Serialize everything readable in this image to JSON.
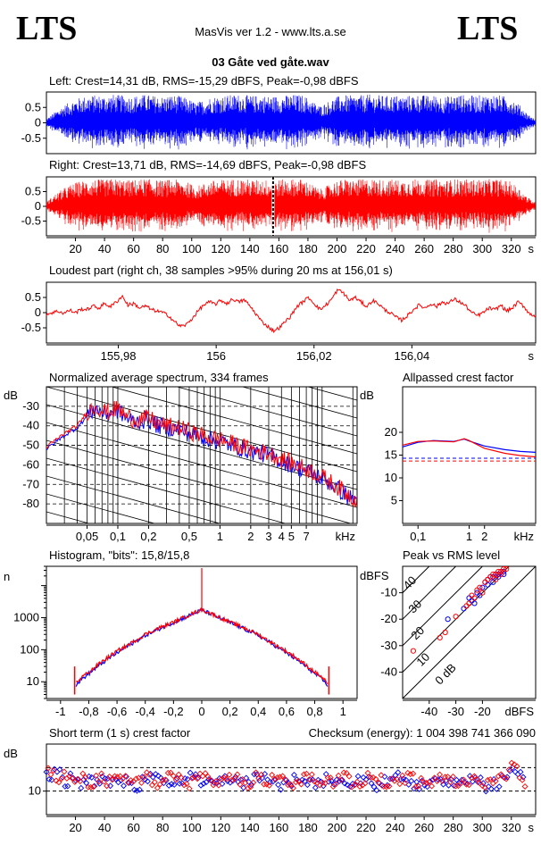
{
  "header": {
    "logo_left": "LTS",
    "logo_right": "LTS",
    "app_title": "MasVis ver 1.2 - www.lts.a.se",
    "file_title": "03 Gåte ved gåte.wav"
  },
  "colors": {
    "left": "#0000ff",
    "right": "#ff0000",
    "grid": "#000000"
  },
  "chart_data": [
    {
      "id": "left-waveform",
      "type": "area",
      "title": "Left: Crest=14,31 dB, RMS=-15,29 dBFS, Peak=-0,98 dBFS",
      "ylim": [
        -1,
        1
      ],
      "yticks": [
        "0.5",
        "0",
        "-0.5"
      ],
      "color": "#0000ff",
      "envelope": [
        0.12,
        0.35,
        0.55,
        0.7,
        0.82,
        0.88,
        0.9,
        0.88,
        0.92,
        0.9,
        0.86,
        0.9,
        0.92,
        0.88,
        0.85,
        0.9,
        0.88,
        0.8,
        0.65,
        0.75,
        0.85,
        0.88,
        0.9,
        0.92,
        0.9,
        0.88,
        0.9,
        0.86,
        0.88,
        0.9,
        0.92,
        0.9,
        0.72,
        0.55,
        0.7,
        0.85,
        0.9,
        0.88,
        0.9,
        0.92,
        0.9,
        0.88,
        0.9,
        0.86,
        0.9,
        0.92,
        0.88,
        0.9,
        0.85,
        0.9,
        0.92,
        0.88,
        0.9,
        0.9,
        0.92,
        0.88,
        0.82,
        0.6,
        0.3,
        0.1
      ]
    },
    {
      "id": "right-waveform",
      "type": "area",
      "title": "Right: Crest=13,71 dB, RMS=-14,69 dBFS, Peak=-0,98 dBFS",
      "ylim": [
        -1,
        1
      ],
      "yticks": [
        "0.5",
        "0",
        "-0.5"
      ],
      "color": "#ff0000",
      "marker_time_s": 156.01,
      "xaxis": {
        "max_s": 330,
        "ticks": [
          "20",
          "40",
          "60",
          "80",
          "100",
          "120",
          "140",
          "160",
          "180",
          "200",
          "220",
          "240",
          "260",
          "280",
          "300",
          "320"
        ],
        "unit": "s"
      },
      "envelope": [
        0.15,
        0.4,
        0.6,
        0.75,
        0.85,
        0.9,
        0.92,
        0.9,
        0.94,
        0.92,
        0.88,
        0.92,
        0.94,
        0.9,
        0.88,
        0.92,
        0.9,
        0.82,
        0.68,
        0.78,
        0.88,
        0.9,
        0.92,
        0.94,
        0.92,
        0.9,
        0.92,
        0.88,
        0.9,
        0.92,
        0.94,
        0.92,
        0.75,
        0.58,
        0.72,
        0.88,
        0.92,
        0.9,
        0.92,
        0.94,
        0.92,
        0.9,
        0.92,
        0.88,
        0.92,
        0.94,
        0.9,
        0.92,
        0.88,
        0.92,
        0.94,
        0.9,
        0.92,
        0.92,
        0.94,
        0.9,
        0.84,
        0.62,
        0.32,
        0.12
      ]
    },
    {
      "id": "loudest-part",
      "type": "line",
      "title": "Loudest part (right ch, 38 samples >95% during 20 ms at 156,01 s)",
      "ylim": [
        -1,
        1
      ],
      "yticks": [
        "0.5",
        "0",
        "-0.5"
      ],
      "color": "#ff0000",
      "xlim": [
        155.9653,
        156.0653
      ],
      "xticks": [
        {
          "v": 155.98,
          "label": "155,98"
        },
        {
          "v": 156.0,
          "label": "156"
        },
        {
          "v": 156.02,
          "label": "156,02"
        },
        {
          "v": 156.04,
          "label": "156,04"
        }
      ],
      "xunit": "s",
      "values": [
        -0.05,
        0.0,
        0.05,
        -0.02,
        0.08,
        0.0,
        0.12,
        0.1,
        0.22,
        0.15,
        0.3,
        0.2,
        0.35,
        0.55,
        0.25,
        0.3,
        0.15,
        0.22,
        0.1,
        0.05,
        0.0,
        -0.1,
        -0.3,
        -0.45,
        -0.4,
        -0.2,
        0.05,
        0.25,
        0.35,
        0.28,
        0.4,
        0.3,
        0.45,
        0.35,
        0.42,
        0.2,
        -0.05,
        -0.3,
        -0.45,
        -0.6,
        -0.5,
        -0.3,
        -0.1,
        0.2,
        0.35,
        0.5,
        0.3,
        0.1,
        0.25,
        0.45,
        0.75,
        0.65,
        0.4,
        0.5,
        0.35,
        0.2,
        0.4,
        0.3,
        0.1,
        0.0,
        -0.15,
        -0.25,
        -0.1,
        0.1,
        0.25,
        0.15,
        0.3,
        0.2,
        0.35,
        0.3,
        0.45,
        0.35,
        0.22,
        0.0,
        -0.1,
        0.0,
        0.15,
        0.08,
        0.25,
        0.05,
        0.15,
        0.35,
        0.2,
        -0.05,
        -0.1
      ]
    },
    {
      "id": "avg-spectrum",
      "type": "line",
      "title": "Normalized average spectrum, 334 frames",
      "ylabel": "dB",
      "ylim": [
        -90,
        -20
      ],
      "yticks": [
        "-30",
        "-40",
        "-50",
        "-60",
        "-70",
        "-80"
      ],
      "xscale": "log",
      "xlim_khz": [
        0.02,
        22
      ],
      "xunit": "kHz",
      "xticks": [
        {
          "v": 0.05,
          "label": "0,05"
        },
        {
          "v": 0.1,
          "label": "0,1"
        },
        {
          "v": 0.2,
          "label": "0,2"
        },
        {
          "v": 0.5,
          "label": "0,5"
        },
        {
          "v": 1,
          "label": "1"
        },
        {
          "v": 2,
          "label": "2"
        },
        {
          "v": 3,
          "label": "3"
        },
        {
          "v": 4,
          "label": "4"
        },
        {
          "v": 5,
          "label": "5"
        },
        {
          "v": 7,
          "label": "7"
        }
      ],
      "x_khz": [
        0.02,
        0.025,
        0.03,
        0.04,
        0.05,
        0.06,
        0.07,
        0.08,
        0.1,
        0.12,
        0.15,
        0.2,
        0.25,
        0.3,
        0.4,
        0.5,
        0.6,
        0.8,
        1.0,
        1.5,
        2.0,
        3.0,
        4.0,
        5.0,
        7.0,
        10.0,
        14.0,
        20.0
      ],
      "series": [
        {
          "color": "#0000ff",
          "values": [
            -52,
            -48,
            -45,
            -41,
            -35,
            -31,
            -33,
            -34,
            -32,
            -36,
            -38,
            -37,
            -40,
            -41,
            -42,
            -44,
            -45,
            -47,
            -48,
            -51,
            -53,
            -55,
            -58,
            -60,
            -63,
            -67,
            -72,
            -78
          ]
        },
        {
          "color": "#ff0000",
          "values": [
            -51,
            -47,
            -44,
            -40,
            -33,
            -30,
            -32,
            -33,
            -31,
            -35,
            -37,
            -36,
            -39,
            -40,
            -41,
            -43,
            -44,
            -46,
            -47,
            -50,
            -52,
            -54,
            -57,
            -59,
            -62,
            -66,
            -71,
            -77
          ]
        }
      ]
    },
    {
      "id": "allpassed-crest",
      "type": "line",
      "title": "Allpassed crest factor",
      "ylabel": "dB",
      "ylim": [
        0,
        30
      ],
      "yticks": [
        "20",
        "15",
        "10",
        "5"
      ],
      "xscale": "log",
      "xlim_khz": [
        0.05,
        20
      ],
      "xunit": "kHz",
      "xticks": [
        {
          "v": 0.1,
          "label": "0,1"
        },
        {
          "v": 1,
          "label": "1"
        },
        {
          "v": 2,
          "label": "2"
        }
      ],
      "x_khz": [
        0.05,
        0.1,
        0.2,
        0.5,
        0.8,
        1.0,
        2.0,
        5.0,
        10.0,
        20.0
      ],
      "series": [
        {
          "color": "#0000ff",
          "values": [
            16.8,
            17.8,
            18.2,
            18.0,
            18.5,
            18.1,
            17.0,
            16.2,
            15.8,
            15.6
          ],
          "reference": 14.31
        },
        {
          "color": "#ff0000",
          "values": [
            17.2,
            18.0,
            18.1,
            17.9,
            18.6,
            18.2,
            16.5,
            15.4,
            14.9,
            14.6
          ],
          "reference": 13.71
        }
      ]
    },
    {
      "id": "histogram",
      "type": "line",
      "title": "Histogram, \"bits\": 15,8/15,8",
      "ylabel": "n",
      "yscale": "log",
      "ylim": [
        3,
        40000
      ],
      "yticks": [
        {
          "v": 1000,
          "label": "1000"
        },
        {
          "v": 100,
          "label": "100"
        },
        {
          "v": 10,
          "label": "10"
        }
      ],
      "xlim": [
        -1.1,
        1.1
      ],
      "xticks": [
        "-1",
        "-0,8",
        "-0,6",
        "-0,4",
        "-0,2",
        "0",
        "0,2",
        "0,4",
        "0,6",
        "0,8",
        "1"
      ],
      "x": [
        -0.89,
        -0.85,
        -0.8,
        -0.7,
        -0.6,
        -0.5,
        -0.4,
        -0.3,
        -0.2,
        -0.1,
        -0.05,
        0.0,
        0.05,
        0.1,
        0.2,
        0.3,
        0.4,
        0.5,
        0.6,
        0.7,
        0.8,
        0.85,
        0.89
      ],
      "series": [
        {
          "color": "#0000ff",
          "values": [
            8,
            12,
            18,
            40,
            80,
            150,
            280,
            450,
            700,
            1100,
            1400,
            1700,
            1400,
            1100,
            700,
            450,
            280,
            150,
            80,
            40,
            18,
            12,
            8
          ]
        },
        {
          "color": "#ff0000",
          "values": [
            9,
            14,
            20,
            45,
            90,
            160,
            300,
            480,
            720,
            1150,
            1450,
            1750,
            1450,
            1150,
            720,
            480,
            300,
            160,
            90,
            45,
            20,
            14,
            9
          ]
        }
      ]
    },
    {
      "id": "peak-vs-rms",
      "type": "scatter",
      "title": "Peak vs RMS level",
      "xlabel": "dBFS",
      "ylabel": "dBFS",
      "xlim": [
        -50,
        0
      ],
      "ylim": [
        -50,
        0
      ],
      "xticks": [
        "-40",
        "-30",
        "-20"
      ],
      "yticks": [
        "-10",
        "-20",
        "-30",
        "-40"
      ],
      "diag_labels": [
        "40",
        "30",
        "20",
        "10",
        "0 dB"
      ],
      "series": [
        {
          "color": "#0000ff",
          "points": [
            [
              -33,
              -20
            ],
            [
              -27,
              -16
            ],
            [
              -25,
              -12
            ],
            [
              -22,
              -10
            ],
            [
              -20,
              -8
            ],
            [
              -19,
              -6
            ],
            [
              -18,
              -5
            ],
            [
              -17,
              -4
            ],
            [
              -16,
              -4
            ],
            [
              -15,
              -3
            ],
            [
              -14,
              -3
            ],
            [
              -13,
              -2
            ],
            [
              -12,
              -2
            ],
            [
              -21,
              -11
            ],
            [
              -23,
              -14
            ],
            [
              -24,
              -13
            ],
            [
              -18,
              -7
            ],
            [
              -16,
              -6
            ],
            [
              -14,
              -4
            ],
            [
              -12,
              -3
            ]
          ]
        },
        {
          "color": "#ff0000",
          "points": [
            [
              -46,
              -32
            ],
            [
              -36,
              -27
            ],
            [
              -34,
              -25
            ],
            [
              -30,
              -19
            ],
            [
              -26,
              -15
            ],
            [
              -24,
              -11
            ],
            [
              -22,
              -9
            ],
            [
              -21,
              -8
            ],
            [
              -19,
              -6
            ],
            [
              -18,
              -5
            ],
            [
              -17,
              -4
            ],
            [
              -16,
              -3
            ],
            [
              -15,
              -3
            ],
            [
              -14,
              -2
            ],
            [
              -13,
              -2
            ],
            [
              -12,
              -1
            ],
            [
              -11,
              -1
            ],
            [
              -20,
              -10
            ],
            [
              -23,
              -12
            ],
            [
              -25,
              -14
            ],
            [
              -15,
              -5
            ],
            [
              -13,
              -3
            ]
          ]
        }
      ]
    },
    {
      "id": "short-term-crest",
      "type": "scatter",
      "title": "Short term (1 s) crest factor",
      "checksum": "Checksum (energy):  1 004 398 741 366 090",
      "ylabel": "dB",
      "ylim": [
        5,
        20
      ],
      "yticks": [
        "10"
      ],
      "reference_lines": [
        10,
        15
      ],
      "xaxis": {
        "max_s": 330,
        "ticks": [
          "20",
          "40",
          "60",
          "80",
          "100",
          "120",
          "140",
          "160",
          "180",
          "200",
          "220",
          "240",
          "260",
          "280",
          "300",
          "320"
        ],
        "unit": "s"
      },
      "series": [
        {
          "color": "#0000ff",
          "values": [
            13,
            14.5,
            12,
            13,
            11.5,
            12.5,
            12,
            13,
            11.5,
            12,
            12.5,
            11,
            12,
            13,
            12.5,
            11.5,
            12,
            12.5,
            13,
            12,
            11.5,
            12,
            12.5,
            12,
            11.5,
            12,
            12.5,
            13,
            12,
            11,
            12,
            12.5,
            12,
            11.5,
            12,
            13,
            12.5,
            11.5,
            12,
            12.5,
            12,
            11,
            12,
            12.5,
            13,
            12,
            11.5,
            12,
            12.5,
            12,
            11.5,
            12,
            12.5,
            13,
            12,
            11,
            11.5,
            12.5,
            14,
            13
          ]
        },
        {
          "color": "#ff0000",
          "values": [
            14,
            12.5,
            13.5,
            12,
            13,
            11.5,
            13,
            12,
            12.5,
            13.5,
            11.5,
            12.5,
            13,
            11.5,
            12,
            13,
            12.5,
            11.5,
            12.5,
            13,
            12,
            11.5,
            13,
            12.5,
            12,
            11,
            13,
            12,
            12.5,
            13.5,
            11.5,
            12,
            13,
            12.5,
            11.5,
            12,
            12.5,
            13,
            11.5,
            12,
            13,
            12.5,
            11.5,
            12,
            12.5,
            13,
            12,
            11.5,
            12,
            13,
            12.5,
            11.5,
            12,
            12.5,
            11,
            12,
            12.5,
            13.5,
            15,
            12
          ]
        }
      ]
    }
  ]
}
